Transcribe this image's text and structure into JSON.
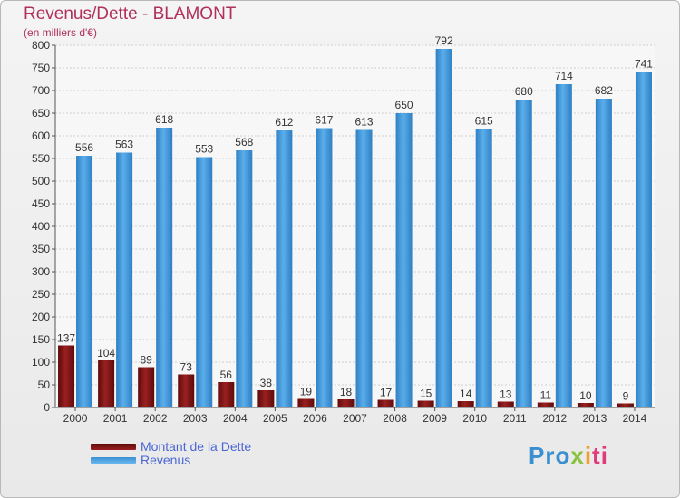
{
  "title": "Revenus/Dette - BLAMONT",
  "subtitle": "(en milliers d'€)",
  "chart_data": {
    "type": "bar",
    "categories": [
      "2000",
      "2001",
      "2002",
      "2003",
      "2004",
      "2005",
      "2006",
      "2007",
      "2008",
      "2009",
      "2010",
      "2011",
      "2012",
      "2013",
      "2014"
    ],
    "series": [
      {
        "name": "Montant de la Dette",
        "values": [
          137,
          104,
          89,
          73,
          56,
          38,
          19,
          18,
          17,
          15,
          14,
          13,
          11,
          10,
          9
        ]
      },
      {
        "name": "Revenus",
        "values": [
          556,
          563,
          618,
          553,
          568,
          612,
          617,
          613,
          650,
          792,
          615,
          680,
          714,
          682,
          741
        ]
      }
    ],
    "ylim": [
      0,
      800
    ],
    "yticks": [
      0,
      50,
      100,
      150,
      200,
      250,
      300,
      350,
      400,
      450,
      500,
      550,
      600,
      650,
      700,
      750,
      800
    ],
    "grid": true,
    "legend": "bottom-left",
    "colors": {
      "Montant de la Dette": "#7a1010",
      "Revenus": "#4a9ee0"
    }
  },
  "legend": {
    "debt_label": "Montant de la Dette",
    "revenue_label": "Revenus"
  },
  "logo": {
    "part1": "Pro",
    "part2": "x",
    "part3": "i",
    "part4": "ti"
  }
}
